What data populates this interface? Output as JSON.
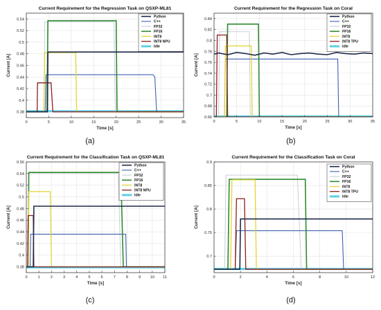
{
  "chart_data": [
    {
      "type": "line",
      "title": "Current Requirement for the Regression Task on QSXP-ML81",
      "xlabel": "Time [s]",
      "ylabel": "Current [A]",
      "xlim": [
        0,
        35
      ],
      "ylim": [
        0.37,
        0.55
      ],
      "xticks": [
        0,
        5,
        10,
        15,
        20,
        25,
        30,
        35
      ],
      "yticks": [
        0.38,
        0.4,
        0.42,
        0.44,
        0.46,
        0.48,
        0.5,
        0.52,
        0.54
      ],
      "ytick_labels": [
        "0.38",
        "0.4",
        "0.42",
        "0.44",
        "0.46",
        "0.48",
        "0.5",
        "0.52",
        "0.54"
      ],
      "grid": true,
      "legend_position": "top-right",
      "caption": "(a)",
      "series": [
        {
          "name": "Python",
          "color": "#1c2a4a",
          "width": 1.6,
          "x": [
            0,
            4.7,
            4.8,
            35
          ],
          "y": [
            0.38,
            0.38,
            0.483,
            0.483
          ]
        },
        {
          "name": "C++",
          "color": "#3d5fb0",
          "width": 1.1,
          "x": [
            0,
            4.2,
            4.4,
            28.2,
            28.6,
            29,
            35
          ],
          "y": [
            0.38,
            0.38,
            0.444,
            0.444,
            0.44,
            0.38,
            0.38
          ]
        },
        {
          "name": "FP32",
          "color": "#c6cfd6",
          "width": 1.0,
          "x": [
            0,
            3.9,
            4.1,
            19.5,
            19.8,
            35
          ],
          "y": [
            0.38,
            0.38,
            0.535,
            0.535,
            0.38,
            0.38
          ]
        },
        {
          "name": "FP16",
          "color": "#2e8b2e",
          "width": 1.6,
          "x": [
            0,
            4.6,
            4.8,
            20,
            20.2,
            35
          ],
          "y": [
            0.38,
            0.38,
            0.537,
            0.537,
            0.38,
            0.38
          ]
        },
        {
          "name": "INT8",
          "color": "#e4d430",
          "width": 1.3,
          "x": [
            0,
            3.9,
            4.1,
            11,
            11.2,
            35
          ],
          "y": [
            0.38,
            0.38,
            0.482,
            0.482,
            0.38,
            0.38
          ]
        },
        {
          "name": "INT8 NPU",
          "color": "#8b1d1d",
          "width": 1.3,
          "x": [
            0,
            2.4,
            2.5,
            5.5,
            5.9,
            35
          ],
          "y": [
            0.38,
            0.38,
            0.43,
            0.43,
            0.38,
            0.38
          ]
        },
        {
          "name": "Idle",
          "color": "#5ccfe6",
          "width": 3.0,
          "x": [
            0,
            35
          ],
          "y": [
            0.381,
            0.381
          ]
        }
      ]
    },
    {
      "type": "line",
      "title": "Current Requirement for the Regression Task on Coral",
      "xlabel": "Time [s]",
      "ylabel": "Current [A]",
      "xlim": [
        0,
        35
      ],
      "ylim": [
        0.66,
        0.85
      ],
      "xticks": [
        0,
        5,
        10,
        15,
        20,
        25,
        30,
        35
      ],
      "yticks": [
        0.66,
        0.68,
        0.7,
        0.72,
        0.74,
        0.76,
        0.78,
        0.8,
        0.82,
        0.84
      ],
      "ytick_labels": [
        "0.66",
        "0.68",
        "0.7",
        "0.72",
        "0.74",
        "0.76",
        "0.78",
        "0.8",
        "0.82",
        "0.84"
      ],
      "grid": true,
      "legend_position": "top-right",
      "caption": "(b)",
      "series": [
        {
          "name": "Python",
          "color": "#1c2a4a",
          "width": 1.6,
          "x": [
            0,
            1,
            3,
            5,
            7,
            9,
            11,
            13,
            15,
            17,
            19,
            21,
            23,
            25,
            27,
            29,
            31,
            33,
            35
          ],
          "y": [
            0.775,
            0.777,
            0.774,
            0.778,
            0.776,
            0.773,
            0.777,
            0.775,
            0.778,
            0.774,
            0.776,
            0.777,
            0.775,
            0.774,
            0.778,
            0.776,
            0.775,
            0.777,
            0.776
          ]
        },
        {
          "name": "C++",
          "color": "#3d5fb0",
          "width": 1.1,
          "x": [
            0,
            2.3,
            2.5,
            27.3,
            27.5,
            35
          ],
          "y": [
            0.66,
            0.66,
            0.766,
            0.766,
            0.66,
            0.66
          ]
        },
        {
          "name": "FP32",
          "color": "#c6cfd6",
          "width": 1.0,
          "x": [
            0,
            1,
            1.2,
            7.8,
            8,
            35
          ],
          "y": [
            0.66,
            0.66,
            0.816,
            0.816,
            0.66,
            0.66
          ]
        },
        {
          "name": "FP16",
          "color": "#2e8b2e",
          "width": 1.6,
          "x": [
            0,
            2.8,
            3,
            9.8,
            10,
            35
          ],
          "y": [
            0.66,
            0.66,
            0.83,
            0.83,
            0.66,
            0.66
          ]
        },
        {
          "name": "INT8",
          "color": "#e4d430",
          "width": 1.3,
          "x": [
            0,
            2.3,
            2.5,
            8.2,
            8.4,
            35
          ],
          "y": [
            0.66,
            0.66,
            0.79,
            0.79,
            0.66,
            0.66
          ]
        },
        {
          "name": "INT8 TPU",
          "color": "#8b1d1d",
          "width": 1.3,
          "x": [
            0,
            0.5,
            0.7,
            2.8,
            3,
            35
          ],
          "y": [
            0.66,
            0.66,
            0.81,
            0.81,
            0.66,
            0.66
          ]
        },
        {
          "name": "Idle",
          "color": "#5ccfe6",
          "width": 3.0,
          "x": [
            0,
            35
          ],
          "y": [
            0.661,
            0.661
          ]
        }
      ]
    },
    {
      "type": "line",
      "title": "Current Requirement for the Classification Task on QSXP-ML81",
      "xlabel": "Time [s]",
      "ylabel": "Current [A]",
      "xlim": [
        0,
        11
      ],
      "ylim": [
        0.37,
        0.56
      ],
      "xticks": [
        0,
        1,
        2,
        3,
        4,
        5,
        6,
        7,
        8,
        9,
        10,
        11
      ],
      "yticks": [
        0.38,
        0.4,
        0.42,
        0.44,
        0.46,
        0.48,
        0.5,
        0.52,
        0.54,
        0.56
      ],
      "ytick_labels": [
        "0.38",
        "0.4",
        "0.42",
        "0.44",
        "0.46",
        "0.48",
        "0.5",
        "0.52",
        "0.54",
        "0.56"
      ],
      "grid": true,
      "legend_position": "top-right",
      "caption": "(c)",
      "series": [
        {
          "name": "Python",
          "color": "#1c2a4a",
          "width": 1.6,
          "x": [
            0,
            0.55,
            0.6,
            11
          ],
          "y": [
            0.38,
            0.38,
            0.484,
            0.484
          ]
        },
        {
          "name": "C++",
          "color": "#3d5fb0",
          "width": 1.1,
          "x": [
            0,
            0.3,
            0.35,
            7.9,
            7.95,
            11
          ],
          "y": [
            0.38,
            0.38,
            0.436,
            0.436,
            0.38,
            0.38
          ]
        },
        {
          "name": "FP32",
          "color": "#c6cfd6",
          "width": 1.0,
          "x": [
            0,
            0.15,
            0.2,
            7.3,
            7.5,
            11
          ],
          "y": [
            0.38,
            0.38,
            0.54,
            0.54,
            0.38,
            0.38
          ]
        },
        {
          "name": "FP16",
          "color": "#2e8b2e",
          "width": 1.6,
          "x": [
            0,
            0.15,
            0.2,
            7.5,
            7.7,
            11
          ],
          "y": [
            0.38,
            0.38,
            0.542,
            0.542,
            0.38,
            0.38
          ]
        },
        {
          "name": "INT8",
          "color": "#e4d430",
          "width": 1.3,
          "x": [
            0,
            0.15,
            0.2,
            1.9,
            2,
            11
          ],
          "y": [
            0.38,
            0.38,
            0.509,
            0.509,
            0.38,
            0.38
          ]
        },
        {
          "name": "INT8 NPU",
          "color": "#8b1d1d",
          "width": 1.3,
          "x": [
            0,
            0.1,
            0.15,
            0.55,
            0.6,
            11
          ],
          "y": [
            0.38,
            0.38,
            0.468,
            0.468,
            0.38,
            0.38
          ]
        },
        {
          "name": "Idle",
          "color": "#5ccfe6",
          "width": 3.0,
          "x": [
            0,
            11
          ],
          "y": [
            0.379,
            0.379
          ]
        }
      ]
    },
    {
      "type": "line",
      "title": "Current Requirement for the Classification Task on Coral",
      "xlabel": "Time [s]",
      "ylabel": "Current [A]",
      "xlim": [
        0,
        12
      ],
      "ylim": [
        0.665,
        0.9
      ],
      "xticks": [
        0,
        2,
        4,
        6,
        8,
        10,
        12
      ],
      "yticks": [
        0.7,
        0.75,
        0.8,
        0.85,
        0.9
      ],
      "ytick_labels": [
        "0.7",
        "0.75",
        "0.8",
        "0.85",
        "0.9"
      ],
      "grid": true,
      "legend_position": "top-right",
      "caption": "(d)",
      "series": [
        {
          "name": "Python",
          "color": "#1c2a4a",
          "width": 1.6,
          "x": [
            0,
            1.95,
            2,
            12
          ],
          "y": [
            0.672,
            0.672,
            0.779,
            0.779
          ]
        },
        {
          "name": "C++",
          "color": "#3d5fb0",
          "width": 1.1,
          "x": [
            0,
            1.6,
            1.7,
            9.7,
            9.8,
            12
          ],
          "y": [
            0.672,
            0.672,
            0.754,
            0.754,
            0.672,
            0.672
          ]
        },
        {
          "name": "FP32",
          "color": "#c6cfd6",
          "width": 1.0,
          "x": [
            0,
            0.8,
            0.9,
            6.3,
            6.6,
            12
          ],
          "y": [
            0.672,
            0.672,
            0.872,
            0.872,
            0.672,
            0.672
          ]
        },
        {
          "name": "FP16",
          "color": "#2e8b2e",
          "width": 1.6,
          "x": [
            0,
            1.05,
            1.15,
            6.9,
            7,
            12
          ],
          "y": [
            0.672,
            0.672,
            0.863,
            0.863,
            0.672,
            0.672
          ]
        },
        {
          "name": "INT8",
          "color": "#e4d430",
          "width": 1.3,
          "x": [
            0,
            1.25,
            1.35,
            3.1,
            3.2,
            12
          ],
          "y": [
            0.672,
            0.672,
            0.862,
            0.862,
            0.672,
            0.672
          ]
        },
        {
          "name": "INT8 TPU",
          "color": "#8b1d1d",
          "width": 1.3,
          "x": [
            0,
            1.6,
            1.7,
            2.3,
            2.4,
            12
          ],
          "y": [
            0.672,
            0.672,
            0.822,
            0.822,
            0.672,
            0.672
          ]
        },
        {
          "name": "Idle",
          "color": "#5ccfe6",
          "width": 3.0,
          "x": [
            0,
            12
          ],
          "y": [
            0.673,
            0.673
          ]
        }
      ]
    }
  ]
}
